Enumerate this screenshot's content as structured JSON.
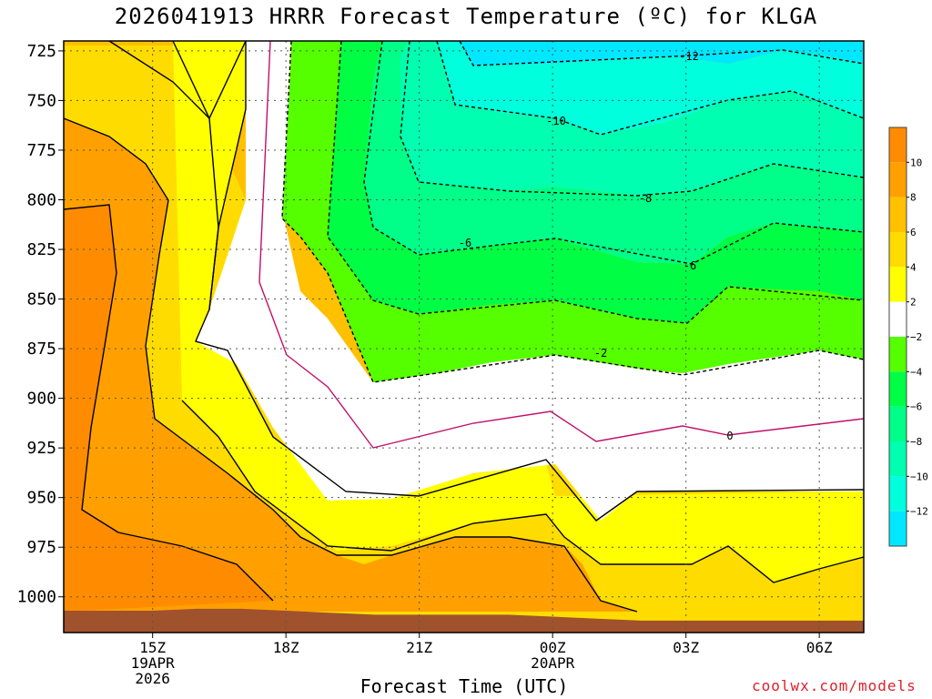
{
  "title": "2026041913 HRRR Forecast Temperature (ºC) for KLGA",
  "credit": "coolwx.com/models",
  "chart_data": {
    "type": "heatmap",
    "title": "2026041913 HRRR Forecast Temperature (ºC) for KLGA",
    "xlabel": "Forecast Time (UTC)",
    "ylabel": "",
    "y_axis": {
      "ticks": [
        725,
        750,
        775,
        800,
        825,
        850,
        875,
        900,
        925,
        950,
        975,
        1000
      ],
      "range": [
        1018,
        720
      ],
      "unit": "hPa"
    },
    "x_axis": {
      "range": [
        13,
        31
      ],
      "ticks": [
        {
          "x": 15,
          "labels": [
            "15Z",
            "19APR",
            "2026"
          ]
        },
        {
          "x": 18,
          "labels": [
            "18Z"
          ]
        },
        {
          "x": 21,
          "labels": [
            "21Z"
          ]
        },
        {
          "x": 24,
          "labels": [
            "00Z",
            "20APR"
          ]
        },
        {
          "x": 27,
          "labels": [
            "03Z"
          ]
        },
        {
          "x": 30,
          "labels": [
            "06Z"
          ]
        }
      ]
    },
    "grid": true,
    "colorbar": {
      "labels": [
        "10",
        "8",
        "6",
        "4",
        "2",
        "−2",
        "−4",
        "−6",
        "−8",
        "−10",
        "−12"
      ],
      "colors": [
        "#ff8c00",
        "#ffa000",
        "#ffc000",
        "#ffdc00",
        "#ffff00",
        "#ffffff",
        "#55ff00",
        "#00ff44",
        "#00ff88",
        "#00ffb0",
        "#00ffdc",
        "#00e8ff"
      ]
    },
    "contour_labels": [
      "-12",
      "-10",
      "-8",
      "-6",
      "-6",
      "-2",
      "0"
    ],
    "surface_color": "#a0522d",
    "series": [
      {
        "values": [
          {
            "t": 13,
            "p": 1007
          },
          {
            "t": 14,
            "p": 1007
          },
          {
            "t": 15,
            "p": 1007
          },
          {
            "t": 16,
            "p": 1006
          },
          {
            "t": 17,
            "p": 1006
          },
          {
            "t": 18,
            "p": 1007
          },
          {
            "t": 19,
            "p": 1008
          },
          {
            "t": 20,
            "p": 1009
          },
          {
            "t": 21,
            "p": 1009
          },
          {
            "t": 22,
            "p": 1009
          },
          {
            "t": 23,
            "p": 1009
          },
          {
            "t": 24,
            "p": 1010
          },
          {
            "t": 25,
            "p": 1011
          },
          {
            "t": 26,
            "p": 1012
          },
          {
            "t": 27,
            "p": 1012
          },
          {
            "t": 28,
            "p": 1012
          },
          {
            "t": 29,
            "p": 1012
          },
          {
            "t": 30,
            "p": 1012
          },
          {
            "t": 31,
            "p": 1012
          }
        ]
      }
    ]
  }
}
